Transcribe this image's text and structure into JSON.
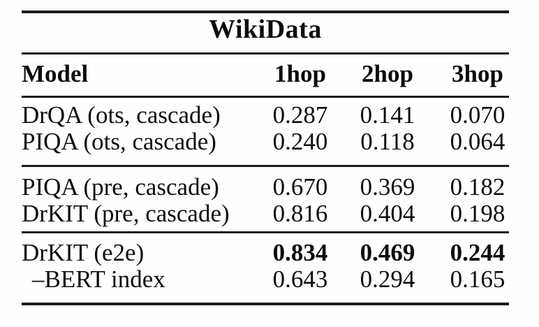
{
  "meta": {
    "background_color": "#fefefe",
    "text_color": "#0d0d0d",
    "rule_color": "#1a1a1a"
  },
  "table": {
    "title": "WikiData",
    "header": {
      "model": "Model",
      "hop1": "1hop",
      "hop2": "2hop",
      "hop3": "3hop"
    },
    "rows": [
      {
        "model": "DrQA (ots, cascade)",
        "hop1": "0.287",
        "hop2": "0.141",
        "hop3": "0.070"
      },
      {
        "model": "PIQA (ots, cascade)",
        "hop1": "0.240",
        "hop2": "0.118",
        "hop3": "0.064"
      },
      {
        "model": "PIQA (pre, cascade)",
        "hop1": "0.670",
        "hop2": "0.369",
        "hop3": "0.182"
      },
      {
        "model": "DrKIT (pre, cascade)",
        "hop1": "0.816",
        "hop2": "0.404",
        "hop3": "0.198"
      },
      {
        "model": "DrKIT (e2e)",
        "hop1": "0.834",
        "hop2": "0.469",
        "hop3": "0.244"
      },
      {
        "model": "–BERT index",
        "hop1": "0.643",
        "hop2": "0.294",
        "hop3": "0.165"
      }
    ]
  }
}
